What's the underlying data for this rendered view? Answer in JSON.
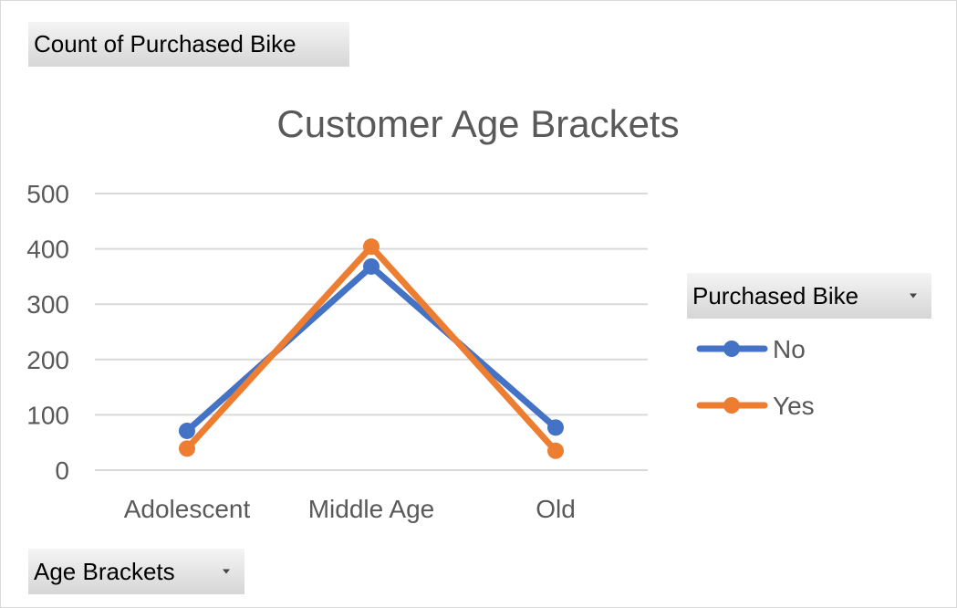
{
  "pivot": {
    "values_field": "Count of Purchased Bike",
    "legend_field": "Purchased Bike",
    "axis_field": "Age Brackets"
  },
  "chart_data": {
    "type": "line",
    "title": "Customer Age Brackets",
    "categories": [
      "Adolescent",
      "Middle Age",
      "Old"
    ],
    "series": [
      {
        "name": "No",
        "values": [
          71,
          368,
          77
        ],
        "color": "#4472C4"
      },
      {
        "name": "Yes",
        "values": [
          39,
          404,
          35
        ],
        "color": "#ED7D31"
      }
    ],
    "ylim": [
      0,
      500
    ],
    "yticks": [
      0,
      100,
      200,
      300,
      400,
      500
    ],
    "grid": true,
    "legend_position": "right"
  }
}
